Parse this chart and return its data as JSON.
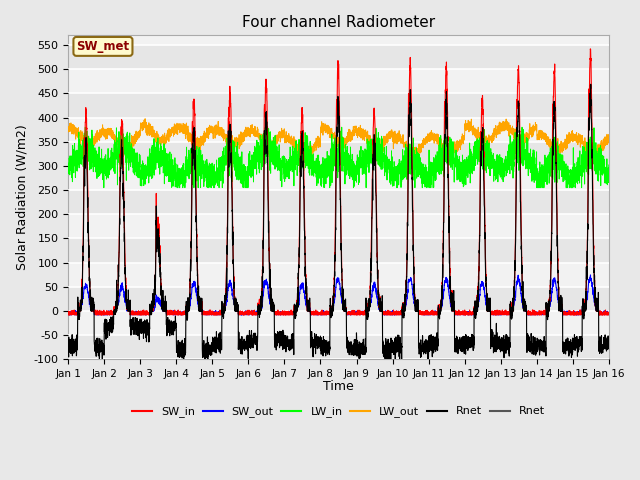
{
  "title": "Four channel Radiometer",
  "xlabel": "Time",
  "ylabel": "Solar Radiation (W/m2)",
  "ylim": [
    -100,
    570
  ],
  "xlim": [
    0,
    15
  ],
  "xtick_positions": [
    0,
    1,
    2,
    3,
    4,
    5,
    6,
    7,
    8,
    9,
    10,
    11,
    12,
    13,
    14,
    15
  ],
  "xtick_labels": [
    "Jan 1",
    "Jan 2",
    "Jan 3",
    "Jan 4",
    "Jan 5",
    "Jan 6",
    "Jan 7",
    "Jan 8",
    "Jan 9",
    "Jan 10",
    "Jan 11",
    "Jan 12",
    "Jan 13",
    "Jan 14",
    "Jan 15",
    "Jan 16"
  ],
  "ytick_values": [
    -100,
    -50,
    0,
    50,
    100,
    150,
    200,
    250,
    300,
    350,
    400,
    450,
    500,
    550
  ],
  "annotation_text": "SW_met",
  "annotation_color": "#8B0000",
  "annotation_bg": "#FFFACD",
  "annotation_edge": "#8B6914",
  "fig_bg": "#E8E8E8",
  "plot_bg": "#F2F2F2",
  "grid_color": "white",
  "legend_entries": [
    "SW_in",
    "SW_out",
    "LW_in",
    "LW_out",
    "Rnet",
    "Rnet"
  ],
  "legend_colors": [
    "red",
    "blue",
    "lime",
    "orange",
    "black",
    "#555555"
  ],
  "num_days": 15,
  "points_per_day": 288,
  "seed": 42,
  "sw_in_amplitudes": [
    410,
    390,
    185,
    440,
    450,
    475,
    415,
    510,
    415,
    510,
    505,
    440,
    505,
    500,
    530
  ],
  "sw_in_spike_heights": [
    80,
    60,
    110,
    90,
    100,
    110,
    80,
    95,
    0,
    100,
    90,
    70,
    90,
    80,
    100
  ],
  "rnet_night_levels": [
    -75,
    -30,
    -35,
    -80,
    -70,
    -60,
    -65,
    -75,
    -80,
    -75,
    -70,
    -65,
    -70,
    -75,
    -70
  ]
}
